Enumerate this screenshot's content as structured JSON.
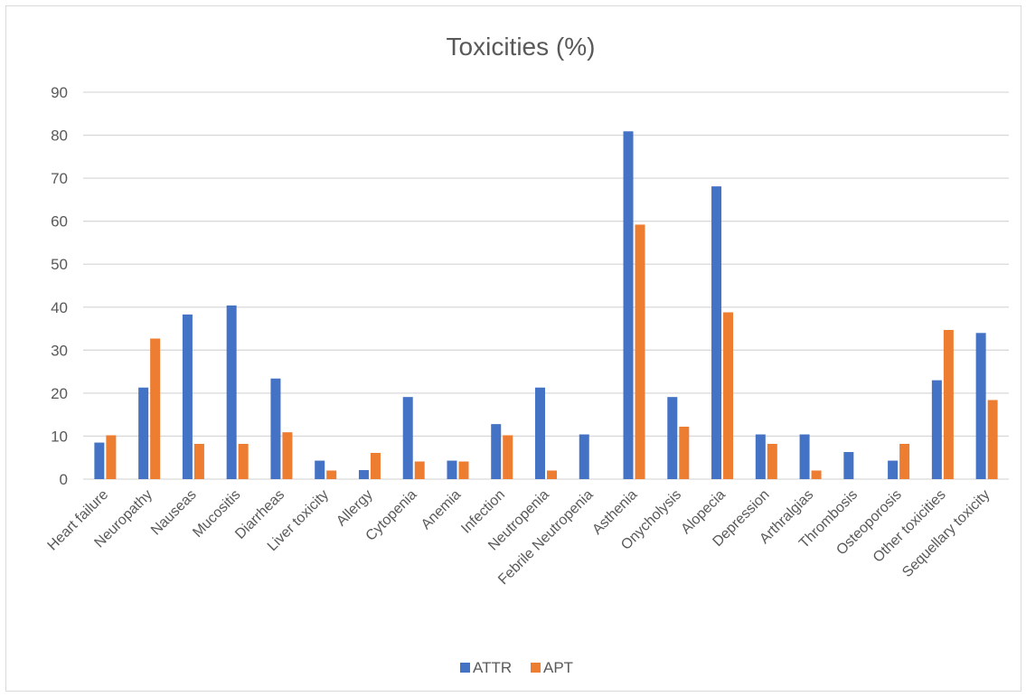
{
  "chart_data": {
    "type": "bar",
    "title": "Toxicities (%)",
    "xlabel": "",
    "ylabel": "",
    "ylim": [
      0,
      90
    ],
    "yticks": [
      0,
      10,
      20,
      30,
      40,
      50,
      60,
      70,
      80,
      90
    ],
    "grid": true,
    "legend_position": "bottom",
    "categories": [
      "Heart failure",
      "Neuropathy",
      "Nauseas",
      "Mucositis",
      "Diarrheas",
      "Liver toxicity",
      "Allergy",
      "Cytopenia",
      "Anemia",
      "Infection",
      "Neutropenia",
      "Febrile Neutropenia",
      "Asthenia",
      "Onycholysis",
      "Alopecia",
      "Depression",
      "Arthralgias",
      "Thrombosis",
      "Osteoporosis",
      "Other toxicities",
      "Sequellary toxicity"
    ],
    "series": [
      {
        "name": "ATTR",
        "color": "#4472c4",
        "values": [
          8.5,
          21.3,
          38.3,
          40.4,
          23.4,
          4.3,
          2.1,
          19.1,
          4.3,
          12.8,
          21.3,
          10.4,
          80.9,
          19.1,
          68.1,
          10.4,
          10.4,
          6.3,
          4.3,
          23.0,
          34.0
        ]
      },
      {
        "name": "APT",
        "color": "#ed7d31",
        "values": [
          10.2,
          32.7,
          8.2,
          8.2,
          10.9,
          2.0,
          6.1,
          4.1,
          4.1,
          10.2,
          2.0,
          0,
          59.2,
          12.2,
          38.8,
          8.2,
          2.0,
          0,
          8.2,
          34.7,
          18.4
        ]
      }
    ]
  }
}
